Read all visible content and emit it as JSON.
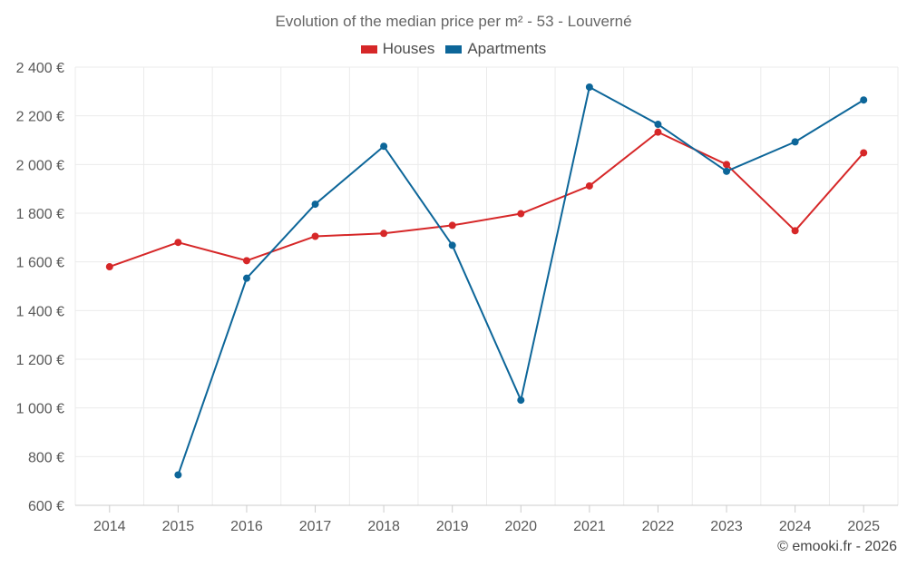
{
  "chart_data": {
    "type": "line",
    "title": "Evolution of the median price per m² - 53 - Louverné",
    "categories": [
      "2014",
      "2015",
      "2016",
      "2017",
      "2018",
      "2019",
      "2020",
      "2021",
      "2022",
      "2023",
      "2024",
      "2025"
    ],
    "series": [
      {
        "name": "Houses",
        "color": "#d62728",
        "values": [
          1580,
          1680,
          1605,
          1705,
          1717,
          1750,
          1798,
          1912,
          2133,
          2000,
          1728,
          2048
        ]
      },
      {
        "name": "Apartments",
        "color": "#0d6699",
        "values": [
          null,
          725,
          1533,
          1837,
          2075,
          1668,
          1032,
          2318,
          2165,
          1972,
          2093,
          2265
        ]
      }
    ],
    "ylim": [
      600,
      2400
    ],
    "yticks": [
      600,
      800,
      1000,
      1200,
      1400,
      1600,
      1800,
      2000,
      2200,
      2400
    ],
    "ytick_labels": [
      "600 €",
      "800 €",
      "1 000 €",
      "1 200 €",
      "1 400 €",
      "1 600 €",
      "1 800 €",
      "2 000 €",
      "2 200 €",
      "2 400 €"
    ],
    "xlabel": "",
    "ylabel": "",
    "grid": true,
    "legend_position": "top-center"
  },
  "footer": {
    "credit": "© emooki.fr - 2026"
  }
}
